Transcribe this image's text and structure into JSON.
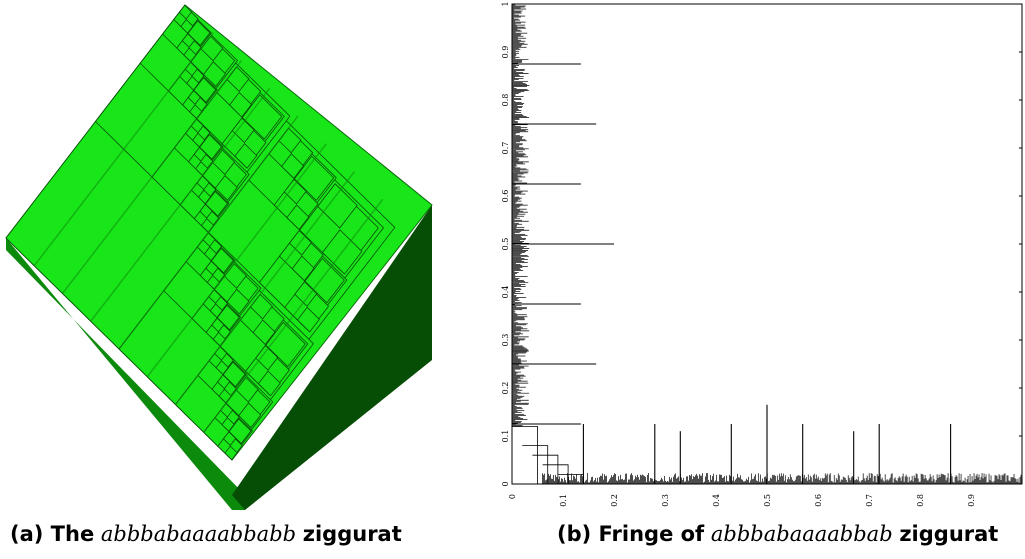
{
  "figure_a": {
    "caption_label": "(a) The",
    "caption_word": "abbbabaaaabbabb",
    "caption_tail": "ziggurat",
    "colors": {
      "top": "#19e619",
      "side_left": "#0c8a0c",
      "side_right": "#064d06",
      "edge": "#000000"
    }
  },
  "figure_b": {
    "caption_label": "(b) Fringe of",
    "caption_word": "abbbabaaaabbab",
    "caption_tail": "ziggurat",
    "chart_data": {
      "type": "line",
      "title": "",
      "xlabel": "",
      "ylabel": "",
      "xlim": [
        0,
        1
      ],
      "ylim": [
        0,
        1
      ],
      "x_ticks": [
        "0",
        "0.1",
        "0.2",
        "0.3",
        "0.4",
        "0.5",
        "0.6",
        "0.7",
        "0.8",
        "0.9"
      ],
      "y_ticks": [
        "0",
        "0.1",
        "0.2",
        "0.3",
        "0.4",
        "0.5",
        "0.6",
        "0.7",
        "0.8",
        "0.9",
        "1"
      ],
      "left_spikes": [
        {
          "y": 0.5,
          "x": 0.2
        },
        {
          "y": 0.25,
          "x": 0.165
        },
        {
          "y": 0.75,
          "x": 0.165
        },
        {
          "y": 0.125,
          "x": 0.135
        },
        {
          "y": 0.375,
          "x": 0.135
        },
        {
          "y": 0.625,
          "x": 0.135
        },
        {
          "y": 0.875,
          "x": 0.135
        }
      ],
      "bottom_spikes": [
        {
          "x": 0.5,
          "y": 0.165
        },
        {
          "x": 0.14,
          "y": 0.125
        },
        {
          "x": 0.28,
          "y": 0.125
        },
        {
          "x": 0.43,
          "y": 0.125
        },
        {
          "x": 0.57,
          "y": 0.125
        },
        {
          "x": 0.72,
          "y": 0.125
        },
        {
          "x": 0.86,
          "y": 0.125
        },
        {
          "x": 0.33,
          "y": 0.11
        },
        {
          "x": 0.67,
          "y": 0.11
        }
      ],
      "grid": false,
      "legend": "none"
    }
  }
}
